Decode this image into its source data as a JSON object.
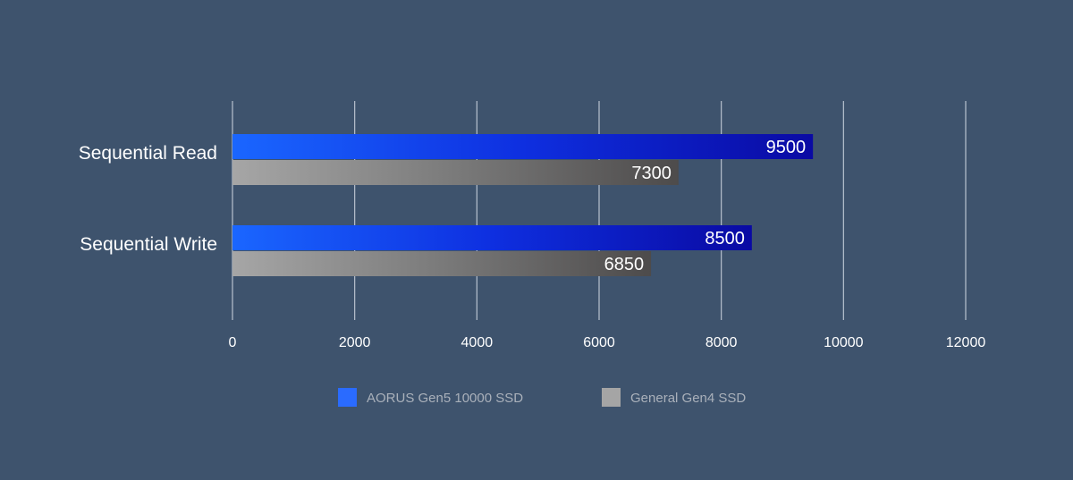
{
  "chart_data": {
    "type": "bar",
    "orientation": "horizontal",
    "categories": [
      "Sequential Read",
      "Sequential Write"
    ],
    "series": [
      {
        "name": "AORUS Gen5 10000 SSD",
        "values": [
          9500,
          8500
        ],
        "value_labels": [
          "9500",
          "8500"
        ],
        "gradient": [
          "#1a66ff",
          "#0e2fe0",
          "#0a0aa3"
        ]
      },
      {
        "name": "General Gen4 SSD",
        "values": [
          7300,
          6850
        ],
        "value_labels": [
          "7300",
          "6850"
        ],
        "gradient": [
          "#a6a6a6",
          "#7a7a7a",
          "#4d4b4b"
        ]
      }
    ],
    "legend_colors": [
      "#2a6bff",
      "#a5a5a5"
    ],
    "xlim": [
      0,
      12000
    ],
    "ticks": [
      0,
      2000,
      4000,
      6000,
      8000,
      10000,
      12000
    ],
    "tick_labels": [
      "0",
      "2000",
      "4000",
      "6000",
      "8000",
      "10000",
      "12000"
    ],
    "grid": true,
    "legend_position": "bottom-center",
    "title": "",
    "xlabel": "",
    "ylabel": ""
  }
}
